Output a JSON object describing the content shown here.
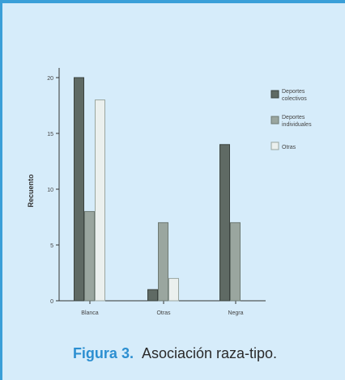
{
  "caption": {
    "label": "Figura 3.",
    "text": "Asociación raza-tipo."
  },
  "colors": {
    "panel_bg": "#d6ecfa",
    "border_accent": "#3a9fd8",
    "caption_label": "#2c8fd1",
    "series_colectivos": "#5f6a64",
    "series_individuales": "#9aa69f",
    "series_otros": "#ebf0ee"
  },
  "chart_data": {
    "type": "bar",
    "title": "",
    "xlabel": "",
    "ylabel": "Recuento",
    "ylim": [
      0,
      20
    ],
    "yticks": [
      0,
      5,
      10,
      15,
      20
    ],
    "grid": false,
    "legend_position": "right",
    "categories": [
      "Blanca",
      "Otras",
      "Negra"
    ],
    "series": [
      {
        "name": "Deportes colectivos",
        "values": [
          20,
          null,
          14
        ],
        "note_values": [
          20,
          1,
          14
        ]
      },
      {
        "name": "Deportes individuales",
        "values": [
          8,
          7,
          7
        ]
      },
      {
        "name": "Otras",
        "values": [
          18,
          2,
          null
        ]
      }
    ]
  }
}
